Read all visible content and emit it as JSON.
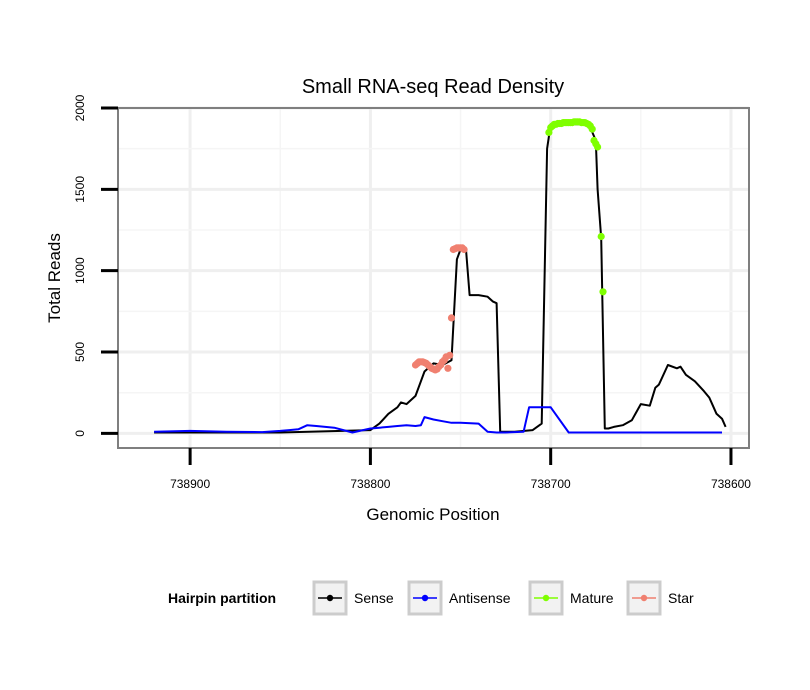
{
  "chart_data": {
    "type": "line",
    "title": "Small RNA-seq Read Density",
    "xlabel": "Genomic Position",
    "ylabel": "Total Reads",
    "xlim": [
      738940,
      738590
    ],
    "ylim": [
      -90,
      2000
    ],
    "x_reversed": true,
    "x_ticks": [
      738900,
      738800,
      738700,
      738600
    ],
    "x_tick_labels": [
      "738900",
      "738800",
      "738700",
      "738600"
    ],
    "y_ticks": [
      0,
      500,
      1000,
      1500,
      2000
    ],
    "y_tick_labels": [
      "0",
      "500",
      "1000",
      "1500",
      "2000"
    ],
    "grid": true,
    "legend": {
      "title": "Hairpin partition",
      "position": "bottom",
      "entries": [
        {
          "name": "Sense",
          "color": "#000000"
        },
        {
          "name": "Antisense",
          "color": "#0000ff"
        },
        {
          "name": "Mature",
          "color": "#7fff00"
        },
        {
          "name": "Star",
          "color": "#f08070"
        }
      ]
    },
    "series": [
      {
        "name": "Sense",
        "style": "line",
        "color": "#000000",
        "x": [
          738920,
          738900,
          738850,
          738800,
          738795,
          738790,
          738785,
          738783,
          738780,
          738775,
          738770,
          738765,
          738760,
          738755,
          738752,
          738750,
          738747,
          738745,
          738740,
          738735,
          738732,
          738730,
          738728,
          738720,
          738710,
          738705,
          738702,
          738700,
          738690,
          738682,
          738678,
          738675,
          738674,
          738672,
          738670,
          738668,
          738665,
          738660,
          738655,
          738650,
          738645,
          738642,
          738640,
          738635,
          738630,
          738628,
          738625,
          738620,
          738615,
          738612,
          738610,
          738608,
          738605,
          738603
        ],
        "y": [
          5,
          5,
          5,
          20,
          60,
          120,
          160,
          190,
          180,
          230,
          380,
          430,
          420,
          450,
          1070,
          1130,
          1130,
          850,
          850,
          840,
          810,
          800,
          10,
          10,
          20,
          60,
          1750,
          1900,
          1900,
          1900,
          1880,
          1800,
          1500,
          1200,
          30,
          30,
          40,
          50,
          80,
          180,
          170,
          280,
          300,
          420,
          400,
          410,
          360,
          320,
          260,
          220,
          170,
          120,
          90,
          40
        ]
      },
      {
        "name": "Antisense",
        "style": "line",
        "color": "#0000ff",
        "x": [
          738920,
          738900,
          738880,
          738860,
          738850,
          738845,
          738840,
          738835,
          738830,
          738820,
          738810,
          738800,
          738795,
          738790,
          738785,
          738780,
          738775,
          738772,
          738770,
          738765,
          738760,
          738755,
          738750,
          738740,
          738735,
          738730,
          738725,
          738715,
          738712,
          738700,
          738690,
          738680,
          738670,
          738660,
          738650,
          738640,
          738630,
          738620,
          738610,
          738605
        ],
        "y": [
          10,
          15,
          10,
          8,
          15,
          20,
          25,
          50,
          45,
          35,
          5,
          30,
          35,
          40,
          45,
          50,
          45,
          50,
          100,
          85,
          75,
          65,
          65,
          60,
          10,
          5,
          5,
          10,
          160,
          160,
          5,
          5,
          5,
          5,
          5,
          5,
          5,
          5,
          5,
          5
        ]
      },
      {
        "name": "Mature",
        "style": "points",
        "color": "#7fff00",
        "x": [
          738701,
          738700,
          738699,
          738698,
          738697,
          738696,
          738695,
          738694,
          738693,
          738692,
          738691,
          738690,
          738689,
          738688,
          738687,
          738686,
          738685,
          738684,
          738683,
          738682,
          738681,
          738680,
          738679,
          738678,
          738677,
          738676,
          738675,
          738674,
          738672,
          738671
        ],
        "y": [
          1850,
          1880,
          1890,
          1900,
          1900,
          1905,
          1905,
          1905,
          1910,
          1910,
          1910,
          1910,
          1910,
          1910,
          1915,
          1915,
          1915,
          1915,
          1910,
          1910,
          1910,
          1905,
          1900,
          1890,
          1870,
          1800,
          1780,
          1760,
          1210,
          870
        ]
      },
      {
        "name": "Star",
        "style": "points",
        "color": "#f08070",
        "x": [
          738775,
          738774,
          738773,
          738772,
          738771,
          738770,
          738769,
          738768,
          738767,
          738766,
          738765,
          738764,
          738763,
          738762,
          738761,
          738760,
          738759,
          738758,
          738757,
          738756,
          738755,
          738754,
          738753,
          738752,
          738751,
          738750,
          738749,
          738748
        ],
        "y": [
          420,
          430,
          440,
          440,
          440,
          435,
          430,
          420,
          410,
          400,
          395,
          390,
          395,
          410,
          420,
          440,
          450,
          470,
          400,
          480,
          710,
          1130,
          1135,
          1140,
          1140,
          1140,
          1140,
          1130
        ]
      }
    ]
  }
}
